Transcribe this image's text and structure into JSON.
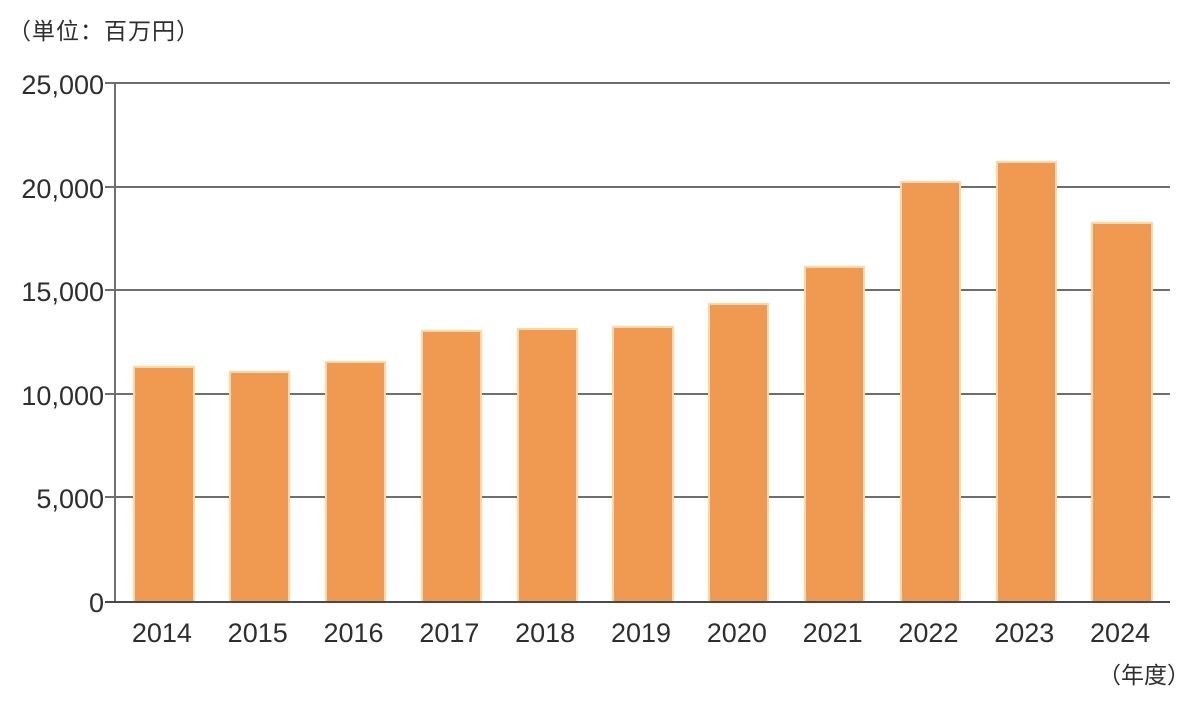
{
  "chart_data": {
    "type": "bar",
    "unit_label": "（単位：百万円）",
    "xaxis_unit_label": "（年度）",
    "categories": [
      "2014",
      "2015",
      "2016",
      "2017",
      "2018",
      "2019",
      "2020",
      "2021",
      "2022",
      "2023",
      "2024"
    ],
    "values": [
      11350,
      11100,
      11600,
      13100,
      13200,
      13250,
      14400,
      16150,
      20250,
      21250,
      18300
    ],
    "ylim": [
      0,
      25000
    ],
    "ytick_interval": 5000,
    "ytick_labels": [
      "0",
      "5,000",
      "10,000",
      "15,000",
      "20,000",
      "25,000"
    ],
    "grid": true,
    "legend": "none",
    "bar_color": "#f09a51",
    "bar_border_color": "#f8d7ab",
    "gridline_color": "#6e6e6e",
    "axis_color": "#4a4a4a",
    "text_color": "#2e2e2e"
  }
}
